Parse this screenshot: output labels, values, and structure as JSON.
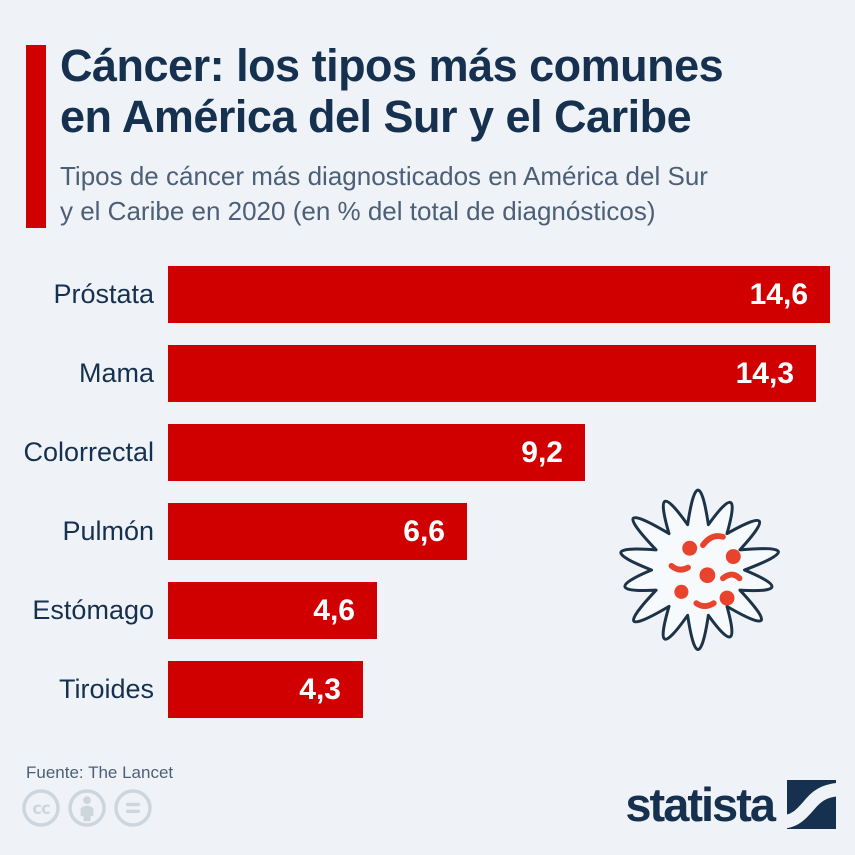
{
  "header": {
    "title_lines": [
      "Cáncer: los tipos más comunes",
      "en América del Sur y el Caribe"
    ],
    "subtitle_lines": [
      "Tipos de cáncer más diagnosticados en América del Sur",
      "y el Caribe en 2020 (en % del total de diagnósticos)"
    ]
  },
  "chart_data": {
    "type": "bar",
    "orientation": "horizontal",
    "title": "Cáncer: los tipos más comunes en América del Sur y el Caribe",
    "subtitle": "Tipos de cáncer más diagnosticados en América del Sur y el Caribe en 2020 (en % del total de diagnósticos)",
    "categories": [
      "Próstata",
      "Mama",
      "Colorrectal",
      "Pulmón",
      "Estómago",
      "Tiroides"
    ],
    "values": [
      14.6,
      14.3,
      9.2,
      6.6,
      4.6,
      4.3
    ],
    "value_labels": [
      "14,6",
      "14,3",
      "9,2",
      "6,6",
      "4,6",
      "4,3"
    ],
    "unit": "% del total de diagnósticos",
    "xlim": [
      0,
      14.6
    ],
    "grid": false,
    "legend": false,
    "bar_color": "#d00000",
    "value_label_position": "inside-end"
  },
  "footer": {
    "source": "Fuente: The Lancet",
    "brand": "statista",
    "license_icons": [
      "cc-icon",
      "attribution-icon",
      "no-derivatives-icon"
    ]
  },
  "icons": {
    "decoration": "cancer-cell-icon"
  },
  "colors": {
    "bg": "#eff3f8",
    "red": "#d00000",
    "navy": "#16314f",
    "slate": "#4c5f76",
    "icon-red": "#e8432d",
    "icon-outline": "#1d3348",
    "license-gray": "#cdd5dd",
    "value-white": "#ffffff"
  }
}
